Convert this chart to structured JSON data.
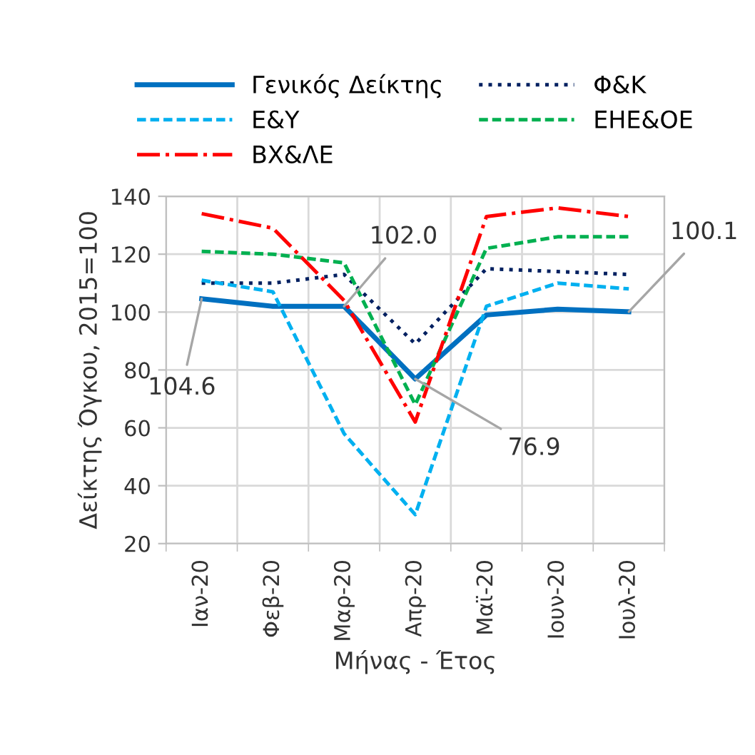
{
  "chart_data": {
    "type": "line",
    "xlabel": "Μήνας - Έτος",
    "ylabel": "Δείκτης Όγκου, 2015=100",
    "categories": [
      "Ιαν-20",
      "Φεβ-20",
      "Μαρ-20",
      "Απρ-20",
      "Μαϊ-20",
      "Ιουν-20",
      "Ιουλ-20"
    ],
    "series": [
      {
        "name": "Γενικός Δείκτης",
        "color": "#0070c0",
        "line_style": "solid",
        "values": [
          104.6,
          102,
          102.0,
          76.9,
          99,
          101,
          100.1
        ]
      },
      {
        "name": "Φ&Κ",
        "color": "#002060",
        "line_style": "dotted",
        "values": [
          110,
          110,
          113,
          89,
          115,
          114,
          113
        ]
      },
      {
        "name": "Ε&Υ",
        "color": "#00b0f0",
        "line_style": "dashed",
        "values": [
          111,
          107,
          58,
          30,
          102,
          110,
          108
        ]
      },
      {
        "name": "ΕΗΕ&ΟΕ",
        "color": "#00b050",
        "line_style": "dashed",
        "values": [
          121,
          120,
          117,
          68,
          122,
          126,
          126
        ]
      },
      {
        "name": "ΒΧ&ΛΕ",
        "color": "#ff0000",
        "line_style": "dashdot",
        "values": [
          134,
          129,
          104,
          62,
          133,
          136,
          133
        ]
      }
    ],
    "annotations": [
      {
        "text": "104.6",
        "x": "Ιαν-20",
        "y": 104.6
      },
      {
        "text": "102.0",
        "x": "Μαρ-20",
        "y": 102.0
      },
      {
        "text": "76.9",
        "x": "Απρ-20",
        "y": 76.9
      },
      {
        "text": "100.1",
        "x": "Ιουλ-20",
        "y": 100.1
      }
    ],
    "ylim": [
      20,
      140
    ],
    "yticks": [
      20,
      40,
      60,
      80,
      100,
      120,
      140
    ],
    "grid": true,
    "legend": "top",
    "marker": "none"
  }
}
